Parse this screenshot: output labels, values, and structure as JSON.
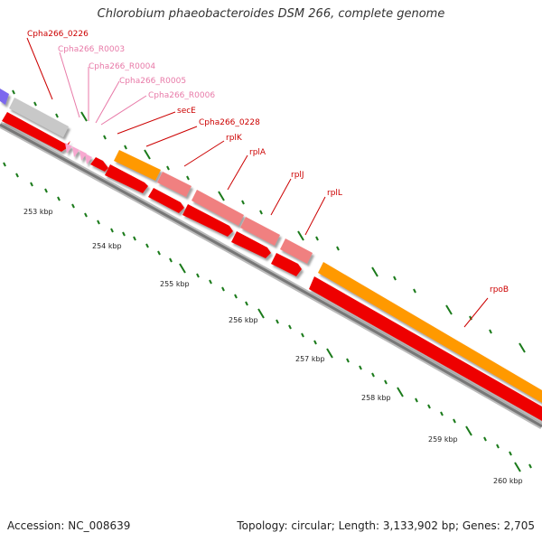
{
  "title": "Chlorobium phaeobacteroides DSM 266, complete genome",
  "footer": {
    "accession": "Accession: NC_008639",
    "summary": "Topology: circular; Length: 3,133,902 bp; Genes: 2,705"
  },
  "colors": {
    "cds": "#ee0000",
    "cds_dark": "#b00000",
    "rrna_grey": "#c8c8c8",
    "orange": "#ff9900",
    "pink": "#f08080",
    "trna": "#f8a8d0",
    "blue": "#7b68ee",
    "label_dark": "#cc0000",
    "label_light": "#e87aa8",
    "tick": "#1a7a1a",
    "backbone": "#888888"
  },
  "scale_labels": [
    "253 kbp",
    "254 kbp",
    "255 kbp",
    "256 kbp",
    "257 kbp",
    "258 kbp",
    "259 kbp",
    "260 kbp"
  ],
  "genes": [
    {
      "label": "Cpha266_0226",
      "color": "label_dark"
    },
    {
      "label": "Cpha266_R0003",
      "color": "label_light"
    },
    {
      "label": "Cpha266_R0004",
      "color": "label_light"
    },
    {
      "label": "Cpha266_R0005",
      "color": "label_light"
    },
    {
      "label": "Cpha266_R0006",
      "color": "label_light"
    },
    {
      "label": "secE",
      "color": "label_dark"
    },
    {
      "label": "Cpha266_0228",
      "color": "label_dark"
    },
    {
      "label": "rplK",
      "color": "label_dark"
    },
    {
      "label": "rplA",
      "color": "label_dark"
    },
    {
      "label": "rplJ",
      "color": "label_dark"
    },
    {
      "label": "rplL",
      "color": "label_dark"
    },
    {
      "label": "rpoB",
      "color": "label_dark"
    }
  ]
}
